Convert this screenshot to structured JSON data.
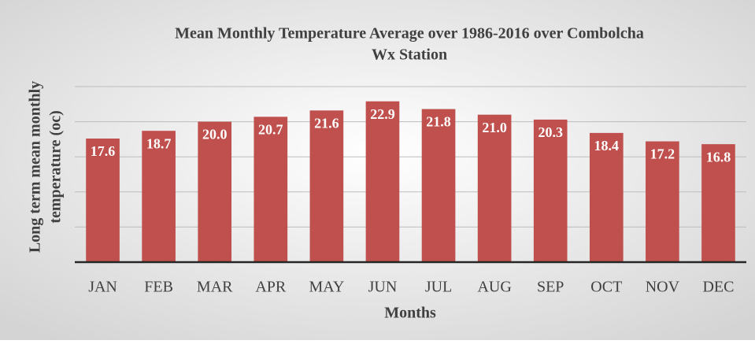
{
  "chart_data": {
    "type": "bar",
    "title": [
      "Mean Monthly Temperature Average over 1986-2016 over Combolcha",
      "Wx Station"
    ],
    "y_label": [
      "Long term mean monthly",
      "temperature (oc)"
    ],
    "x_label": "Months",
    "categories": [
      "JAN",
      "FEB",
      "MAR",
      "APR",
      "MAY",
      "JUN",
      "JUL",
      "AUG",
      "SEP",
      "OCT",
      "NOV",
      "DEC"
    ],
    "values": [
      17.6,
      18.7,
      20.0,
      20.7,
      21.6,
      22.9,
      21.8,
      21.0,
      20.3,
      18.4,
      17.2,
      16.8
    ],
    "value_labels": [
      "17.6",
      "18.7",
      "20.0",
      "20.7",
      "21.6",
      "22.9",
      "21.8",
      "21.0",
      "20.3",
      "18.4",
      "17.2",
      "16.8"
    ],
    "color": "#c0504d",
    "ylim": [
      0,
      25
    ],
    "yticks": [
      0,
      5,
      10,
      15,
      20,
      25
    ],
    "grid": true
  }
}
